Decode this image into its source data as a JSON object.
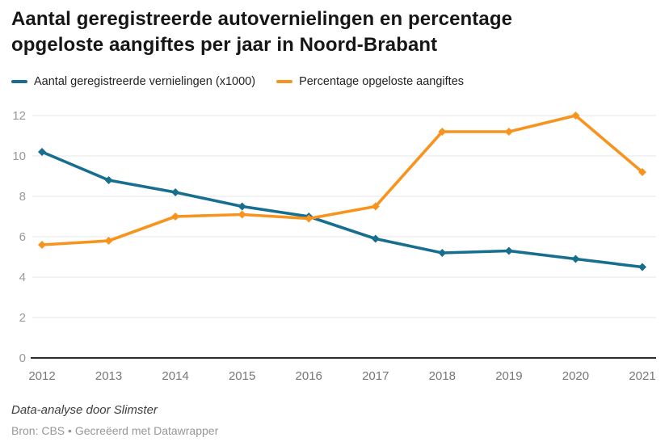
{
  "header": {
    "title": "Aantal geregistreerde autovernielingen en percentage opgeloste aangiftes per jaar in Noord-Brabant"
  },
  "chart_data": {
    "type": "line",
    "x": [
      2012,
      2013,
      2014,
      2015,
      2016,
      2017,
      2018,
      2019,
      2020,
      2021
    ],
    "series": [
      {
        "name": "Aantal geregistreerde vernielingen (x1000)",
        "color": "#176e8e",
        "values": [
          10.2,
          8.8,
          8.2,
          7.5,
          7.0,
          5.9,
          5.2,
          5.3,
          4.9,
          4.5
        ]
      },
      {
        "name": "Percentage opgeloste aangiftes",
        "color": "#f7941d",
        "values": [
          5.6,
          5.8,
          7.0,
          7.1,
          6.9,
          7.5,
          11.2,
          11.2,
          12.0,
          9.2
        ]
      }
    ],
    "title": "Aantal geregistreerde autovernielingen en percentage opgeloste aangiftes per jaar in Noord-Brabant",
    "xlabel": "",
    "ylabel": "",
    "ylim": [
      0,
      12
    ],
    "yticks": [
      0,
      2,
      4,
      6,
      8,
      10,
      12
    ],
    "grid": true,
    "legend_position": "top",
    "marker": "diamond",
    "colors": {
      "grid_line": "#e7e7e7",
      "baseline": "#2e2e2e",
      "y_tick_label": "#9a9a9a",
      "x_tick_label": "#767676"
    }
  },
  "footer": {
    "byline": "Data-analyse door Slimster",
    "source": "Bron: CBS • Gecreëerd met Datawrapper"
  }
}
